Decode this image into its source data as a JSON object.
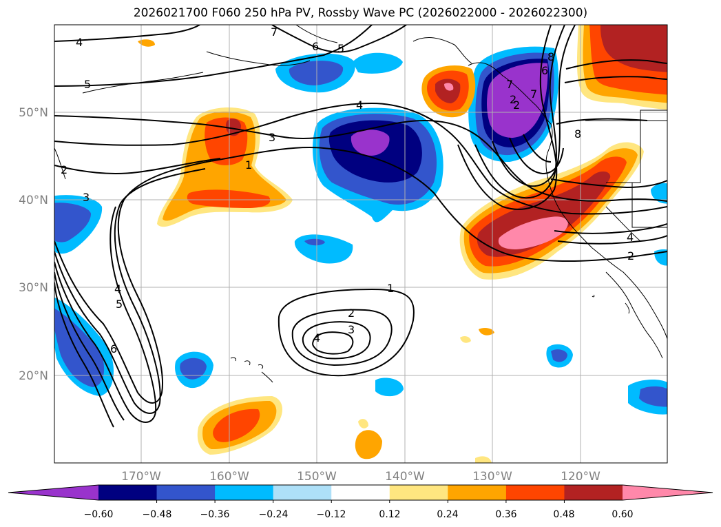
{
  "title": "2026021700 F060 250 hPa PV, Rossby Wave PC (2026022000 - 2026022300)",
  "lat_labels": [
    "50°N",
    "40°N",
    "30°N",
    "20°N"
  ],
  "lon_labels": [
    "170°W",
    "160°W",
    "150°W",
    "140°W",
    "130°W",
    "120°W"
  ],
  "colorbar": {
    "tick_labels": [
      "−0.60",
      "−0.48",
      "−0.36",
      "−0.24",
      "−0.12",
      "0.12",
      "0.24",
      "0.36",
      "0.48",
      "0.60"
    ],
    "colors": [
      "#9933cc",
      "#000080",
      "#3355cc",
      "#00bbff",
      "#aee0f8",
      "#ffffff",
      "#ffe680",
      "#ffa500",
      "#ff4500",
      "#b22222",
      "#ff88aa"
    ]
  },
  "contour_labels": [
    "4",
    "5",
    "6",
    "5",
    "4",
    "3",
    "1",
    "2",
    "3",
    "4",
    "5",
    "6",
    "7",
    "8",
    "2",
    "2",
    "1",
    "2",
    "3",
    "4",
    "6",
    "7",
    "7",
    "8",
    "4",
    "2"
  ],
  "colors": {
    "contour": "#000000",
    "grid": "#b0b0b0",
    "coast": "#000000"
  }
}
